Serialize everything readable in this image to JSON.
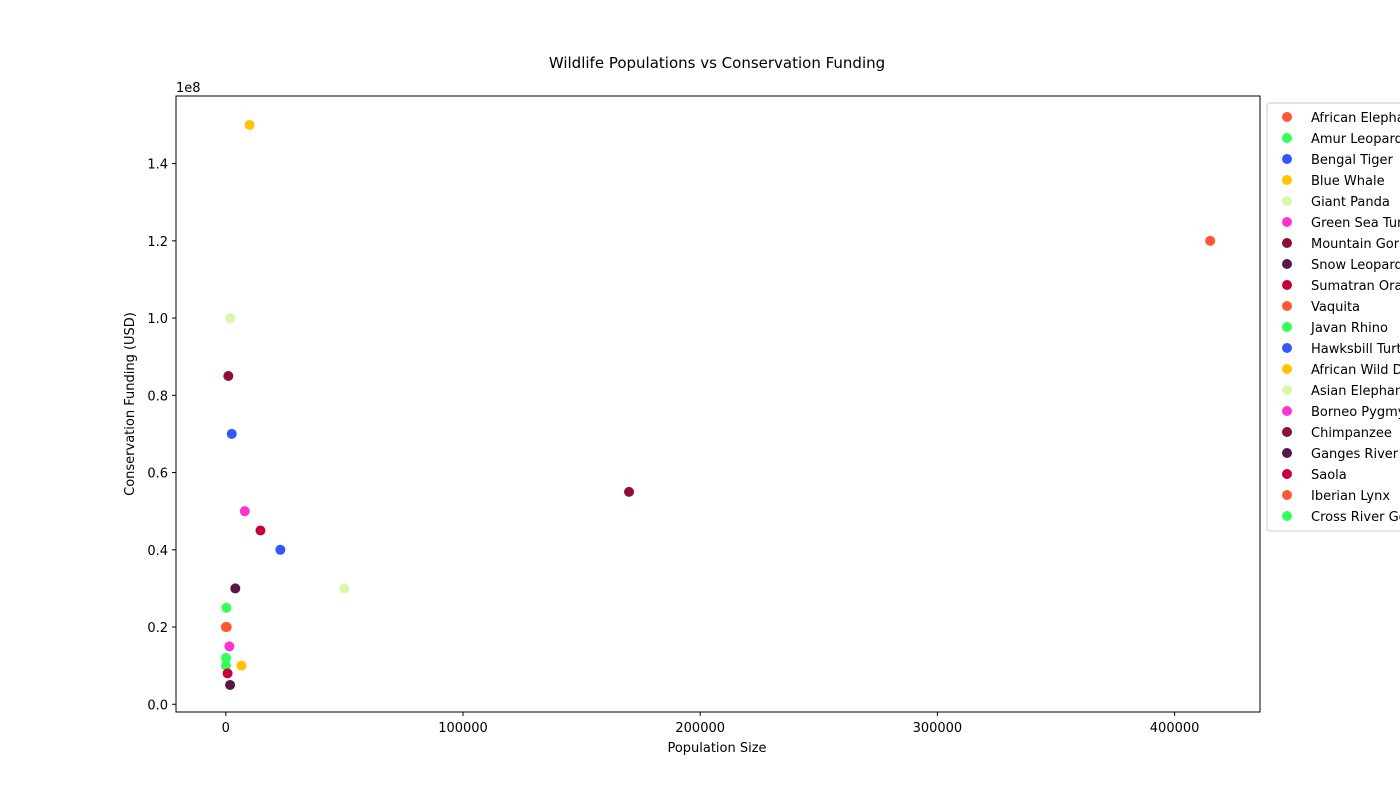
{
  "chart_data": {
    "type": "scatter",
    "title": "Wildlife Populations vs Conservation Funding",
    "xlabel": "Population Size",
    "ylabel": "Conservation Funding (USD)",
    "y_offset_label": "1e8",
    "xlim": [
      -21000,
      436000
    ],
    "ylim": [
      -2000000,
      157500000
    ],
    "x_ticks": [
      0,
      100000,
      200000,
      300000,
      400000
    ],
    "x_tick_labels": [
      "0",
      "100000",
      "200000",
      "300000",
      "400000"
    ],
    "y_ticks": [
      0,
      20000000,
      40000000,
      60000000,
      80000000,
      100000000,
      120000000,
      140000000
    ],
    "y_tick_labels": [
      "0.0",
      "0.2",
      "0.4",
      "0.6",
      "0.8",
      "1.0",
      "1.2",
      "1.4"
    ],
    "grid": false,
    "legend_position": "right, outside plot (partially cut off)",
    "series": [
      {
        "name": "African Elephant",
        "color": "#ff5733",
        "x": 415000,
        "y": 120000000
      },
      {
        "name": "Amur Leopard",
        "color": "#33ff57",
        "x": 100,
        "y": 12000000
      },
      {
        "name": "Bengal Tiger",
        "color": "#3357ff",
        "x": 2500,
        "y": 70000000
      },
      {
        "name": "Blue Whale",
        "color": "#ffc300",
        "x": 10000,
        "y": 150000000
      },
      {
        "name": "Giant Panda",
        "color": "#daf7a6",
        "x": 1860,
        "y": 100000000
      },
      {
        "name": "Green Sea Turtle",
        "color": "#ff33d4",
        "x": 8000,
        "y": 50000000
      },
      {
        "name": "Mountain Gorilla",
        "color": "#900c3f",
        "x": 1063,
        "y": 85000000
      },
      {
        "name": "Snow Leopard",
        "color": "#581845",
        "x": 4000,
        "y": 30000000
      },
      {
        "name": "Sumatran Orangutan",
        "color": "#c70039",
        "x": 14600,
        "y": 45000000
      },
      {
        "name": "Vaquita",
        "color": "#ff5733",
        "x": 10,
        "y": 20000000
      },
      {
        "name": "Javan Rhino",
        "color": "#33ff57",
        "x": 75,
        "y": 10000000
      },
      {
        "name": "Hawksbill Turtle",
        "color": "#3357ff",
        "x": 23000,
        "y": 40000000
      },
      {
        "name": "African Wild Dog",
        "color": "#ffc300",
        "x": 6600,
        "y": 10000000
      },
      {
        "name": "Asian Elephant",
        "color": "#daf7a6",
        "x": 50000,
        "y": 30000000
      },
      {
        "name": "Borneo Pygmy Elephant",
        "color": "#ff33d4",
        "x": 1500,
        "y": 15000000
      },
      {
        "name": "Chimpanzee",
        "color": "#900c3f",
        "x": 170000,
        "y": 55000000
      },
      {
        "name": "Ganges River Dolphin",
        "color": "#581845",
        "x": 1800,
        "y": 5000000
      },
      {
        "name": "Saola",
        "color": "#c70039",
        "x": 750,
        "y": 8000000
      },
      {
        "name": "Iberian Lynx",
        "color": "#ff5733",
        "x": 400,
        "y": 20000000
      },
      {
        "name": "Cross River Gorilla",
        "color": "#33ff57",
        "x": 250,
        "y": 25000000
      }
    ]
  }
}
